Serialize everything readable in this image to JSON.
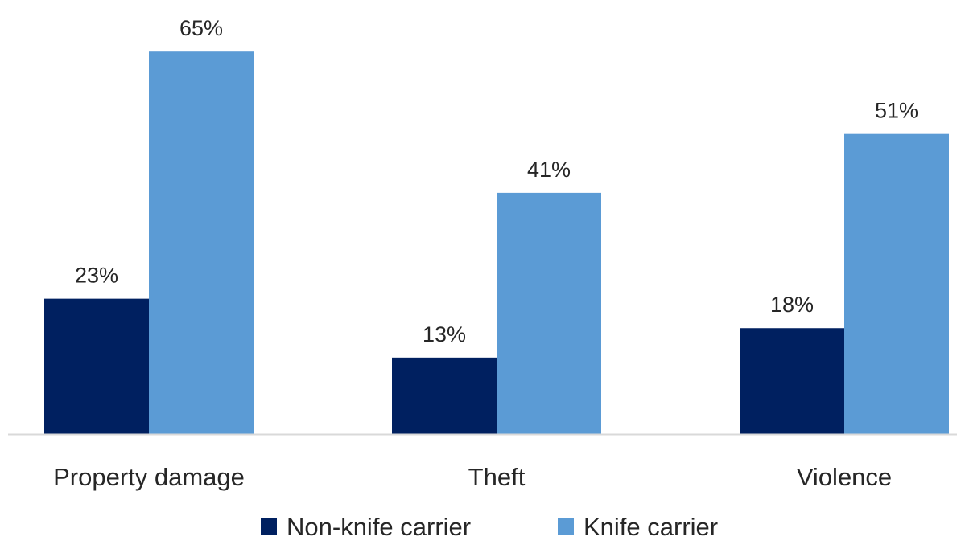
{
  "chart_data": {
    "type": "bar",
    "categories": [
      "Property damage",
      "Theft",
      "Violence"
    ],
    "series": [
      {
        "name": "Non-knife carrier",
        "values": [
          23,
          13,
          18
        ],
        "labels": [
          "23%",
          "13%",
          "18%"
        ],
        "color": "#002060"
      },
      {
        "name": "Knife carrier",
        "values": [
          65,
          41,
          51
        ],
        "labels": [
          "65%",
          "41%",
          "51%"
        ],
        "color": "#5B9BD5"
      }
    ],
    "value_unit": "%",
    "ylim": [
      0,
      70
    ],
    "y_axis_visible": false,
    "grid": false,
    "legend": "bottom",
    "baseline_color": "#D9D9D9"
  }
}
